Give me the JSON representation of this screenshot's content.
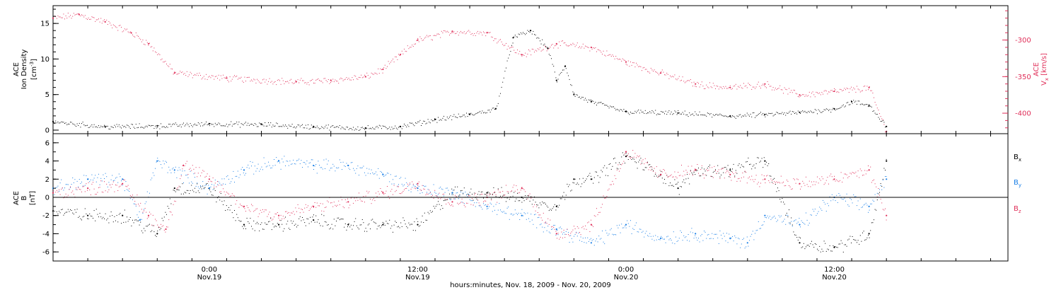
{
  "colors": {
    "black": "#000000",
    "pink": "#e0305a",
    "blue": "#1a7fe6"
  },
  "xaxis": {
    "label": "hours:minutes, Nov. 18, 2009 - Nov. 20, 2009",
    "start": "2009-11-18T15:00",
    "end": "2009-11-20T22:00",
    "ticks": [
      {
        "t": "2009-11-19T00:00",
        "time": "0:00",
        "date": "Nov.19"
      },
      {
        "t": "2009-11-19T12:00",
        "time": "12:00",
        "date": "Nov.19"
      },
      {
        "t": "2009-11-20T00:00",
        "time": "0:00",
        "date": "Nov.20"
      },
      {
        "t": "2009-11-20T12:00",
        "time": "12:00",
        "date": "Nov.20"
      }
    ],
    "minor_tick_hours": 2
  },
  "chart_data": [
    {
      "type": "scatter",
      "panel": "top",
      "left_axis": {
        "label_line1": "ACE",
        "label_line2": "Ion Density",
        "label_line3": "[cm",
        "label_sup": "-3",
        "label_close": "]",
        "ylim": [
          -0.5,
          17.5
        ],
        "ticks": [
          "0",
          "5",
          "10",
          "15"
        ]
      },
      "right_axis": {
        "label_line1": "ACE",
        "label_line2a": "V",
        "label_sub": "x",
        "label_line2b": " [km/s]",
        "ylim": [
          -428,
          -253
        ],
        "ticks": [
          "-400",
          "-350",
          "-300"
        ]
      },
      "series": [
        {
          "key": "density",
          "color": "#000000",
          "axis": "left",
          "x": [
            "2009-11-18T15:00",
            "2009-11-18T18:00",
            "2009-11-18T21:00",
            "2009-11-19T00:00",
            "2009-11-19T03:00",
            "2009-11-19T06:00",
            "2009-11-19T09:00",
            "2009-11-19T11:00",
            "2009-11-19T13:00",
            "2009-11-19T15:00",
            "2009-11-19T16:30",
            "2009-11-19T17:30",
            "2009-11-19T18:30",
            "2009-11-19T19:30",
            "2009-11-19T20:00",
            "2009-11-19T20:30",
            "2009-11-19T21:00",
            "2009-11-19T22:00",
            "2009-11-20T00:00",
            "2009-11-20T03:00",
            "2009-11-20T06:00",
            "2009-11-20T08:00",
            "2009-11-20T10:00",
            "2009-11-20T12:00",
            "2009-11-20T13:00",
            "2009-11-20T14:00",
            "2009-11-20T15:00"
          ],
          "values": [
            1.2,
            0.5,
            0.6,
            0.9,
            0.8,
            0.5,
            0.3,
            0.5,
            1.5,
            2.2,
            3.0,
            13.0,
            14.0,
            11.5,
            7.0,
            9.0,
            5.0,
            4.0,
            2.6,
            2.4,
            2.0,
            2.2,
            2.5,
            3.0,
            4.0,
            3.5,
            0.5
          ]
        },
        {
          "key": "vx",
          "color": "#e0305a",
          "axis": "right",
          "x": [
            "2009-11-18T15:00",
            "2009-11-18T16:30",
            "2009-11-18T18:00",
            "2009-11-18T19:30",
            "2009-11-18T20:30",
            "2009-11-18T22:00",
            "2009-11-19T01:00",
            "2009-11-19T05:00",
            "2009-11-19T07:00",
            "2009-11-19T09:00",
            "2009-11-19T10:00",
            "2009-11-19T11:00",
            "2009-11-19T12:00",
            "2009-11-19T14:00",
            "2009-11-19T16:00",
            "2009-11-19T18:00",
            "2009-11-19T20:00",
            "2009-11-19T22:00",
            "2009-11-20T00:00",
            "2009-11-20T02:00",
            "2009-11-20T04:00",
            "2009-11-20T06:00",
            "2009-11-20T08:00",
            "2009-11-20T10:00",
            "2009-11-20T12:00",
            "2009-11-20T14:00",
            "2009-11-20T15:00"
          ],
          "values": [
            -270,
            -265,
            -275,
            -290,
            -305,
            -345,
            -352,
            -357,
            -355,
            -350,
            -340,
            -320,
            -300,
            -288,
            -290,
            -320,
            -305,
            -310,
            -330,
            -345,
            -360,
            -365,
            -360,
            -375,
            -370,
            -365,
            -425
          ]
        }
      ]
    },
    {
      "type": "scatter",
      "panel": "bottom",
      "left_axis": {
        "label_line1": "ACE",
        "label_line2": "B",
        "label_line3": "[nT]",
        "ylim": [
          -7,
          7
        ],
        "ticks": [
          "-6",
          "-4",
          "-2",
          "0",
          "2",
          "4",
          "6"
        ]
      },
      "legend": {
        "position": "right",
        "entries": [
          {
            "name": "B",
            "sub": "x",
            "color": "#000000"
          },
          {
            "name": "B",
            "sub": "y",
            "color": "#1a7fe6"
          },
          {
            "name": "B",
            "sub": "z",
            "color": "#e0305a"
          }
        ]
      },
      "series": [
        {
          "key": "bx",
          "color": "#000000",
          "x": [
            "2009-11-18T15:00",
            "2009-11-18T17:00",
            "2009-11-18T19:00",
            "2009-11-18T21:00",
            "2009-11-18T22:00",
            "2009-11-19T00:00",
            "2009-11-19T02:00",
            "2009-11-19T04:00",
            "2009-11-19T06:00",
            "2009-11-19T08:00",
            "2009-11-19T10:00",
            "2009-11-19T12:00",
            "2009-11-19T14:00",
            "2009-11-19T16:00",
            "2009-11-19T18:00",
            "2009-11-19T20:00",
            "2009-11-19T21:00",
            "2009-11-19T22:00",
            "2009-11-20T00:00",
            "2009-11-20T02:00",
            "2009-11-20T03:00",
            "2009-11-20T04:00",
            "2009-11-20T06:00",
            "2009-11-20T08:00",
            "2009-11-20T10:00",
            "2009-11-20T12:00",
            "2009-11-20T14:00",
            "2009-11-20T15:00"
          ],
          "values": [
            -1.5,
            -2.0,
            -2.0,
            -4.0,
            1.0,
            1.0,
            -3.0,
            -3.0,
            -2.5,
            -3.0,
            -3.0,
            -3.0,
            0.5,
            0.5,
            0.0,
            -1.0,
            2.0,
            2.0,
            4.5,
            2.5,
            1.0,
            3.0,
            3.0,
            4.0,
            -5.0,
            -5.5,
            -4.0,
            4.0
          ]
        },
        {
          "key": "by",
          "color": "#1a7fe6",
          "x": [
            "2009-11-18T15:00",
            "2009-11-18T17:00",
            "2009-11-18T19:00",
            "2009-11-18T20:00",
            "2009-11-18T21:00",
            "2009-11-18T22:00",
            "2009-11-19T00:00",
            "2009-11-19T02:00",
            "2009-11-19T04:00",
            "2009-11-19T06:00",
            "2009-11-19T08:00",
            "2009-11-19T10:00",
            "2009-11-19T12:00",
            "2009-11-19T14:00",
            "2009-11-19T16:00",
            "2009-11-19T18:00",
            "2009-11-19T20:00",
            "2009-11-19T22:00",
            "2009-11-20T00:00",
            "2009-11-20T02:00",
            "2009-11-20T04:00",
            "2009-11-20T06:00",
            "2009-11-20T07:00",
            "2009-11-20T08:00",
            "2009-11-20T10:00",
            "2009-11-20T12:00",
            "2009-11-20T14:00",
            "2009-11-20T15:00"
          ],
          "values": [
            1.0,
            2.0,
            2.0,
            -2.5,
            4.0,
            3.0,
            1.0,
            3.0,
            4.0,
            3.5,
            3.5,
            2.5,
            1.0,
            0.5,
            -1.0,
            -2.0,
            -3.5,
            -5.0,
            -3.0,
            -4.5,
            -4.0,
            -4.5,
            -5.0,
            -2.0,
            -3.0,
            0.0,
            -1.0,
            2.0
          ]
        },
        {
          "key": "bz",
          "color": "#e0305a",
          "x": [
            "2009-11-18T15:00",
            "2009-11-18T17:00",
            "2009-11-18T19:00",
            "2009-11-18T20:30",
            "2009-11-18T21:30",
            "2009-11-18T22:30",
            "2009-11-19T00:00",
            "2009-11-19T02:00",
            "2009-11-19T04:00",
            "2009-11-19T06:00",
            "2009-11-19T08:00",
            "2009-11-19T10:00",
            "2009-11-19T12:00",
            "2009-11-19T14:00",
            "2009-11-19T16:00",
            "2009-11-19T18:00",
            "2009-11-19T20:00",
            "2009-11-19T22:00",
            "2009-11-20T00:00",
            "2009-11-20T02:00",
            "2009-11-20T04:00",
            "2009-11-20T06:00",
            "2009-11-20T08:00",
            "2009-11-20T10:00",
            "2009-11-20T12:00",
            "2009-11-20T14:00",
            "2009-11-20T15:00"
          ],
          "values": [
            0.5,
            1.0,
            1.5,
            -2.0,
            -3.5,
            3.5,
            2.0,
            -1.0,
            -2.0,
            -1.0,
            -0.5,
            0.5,
            1.5,
            -0.5,
            0.0,
            1.0,
            -4.0,
            -3.0,
            5.0,
            2.5,
            3.0,
            2.5,
            2.0,
            1.5,
            2.0,
            3.0,
            -2.0
          ]
        }
      ]
    }
  ]
}
